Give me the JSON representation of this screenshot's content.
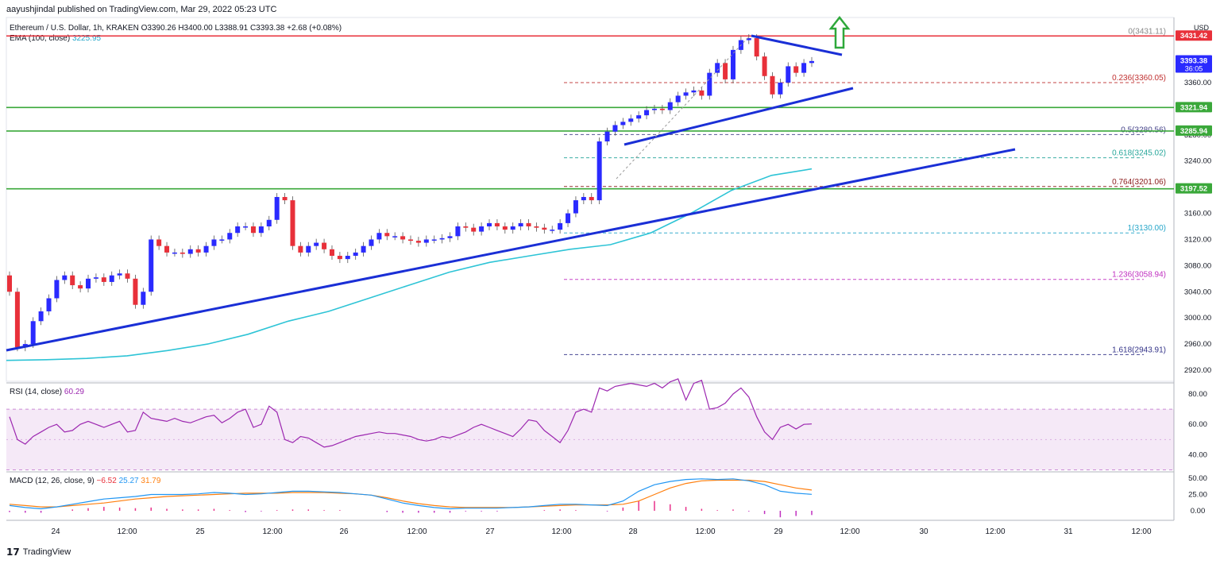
{
  "header": {
    "published": "aayushjindal published on TradingView.com, Mar 29, 2022 05:23 UTC"
  },
  "legend": {
    "symbol": "Ethereum / U.S. Dollar, 1h, KRAKEN",
    "ohlc": "O3390.26  H3400.00  L3388.91  C3393.38  +2.68 (+0.08%)",
    "ema_label": "EMA (100, close)",
    "ema_value": "3225.95"
  },
  "rsi_label": {
    "name": "RSI (14, close)",
    "value": "60.29"
  },
  "macd_label": {
    "name": "MACD (12, 26, close, 9)",
    "v1": "−6.52",
    "v2": "25.27",
    "v3": "31.79"
  },
  "footer": {
    "brand": "TradingView"
  },
  "colors": {
    "up": "#2a2aff",
    "down": "#e8303a",
    "ema": "#2ec4d6",
    "trend": "#1a2fd6",
    "support": "#3aa83a",
    "resistance": "#e8303a",
    "rsi": "#9c27b0",
    "macd": "#2196f3",
    "signal": "#ff7f0e",
    "fib": "#c03030"
  },
  "chart_data": {
    "type": "candlestick",
    "currency": "USD",
    "main_y_ticks": [
      2920,
      2960,
      3000,
      3040,
      3080,
      3120,
      3160,
      3200,
      3240,
      3280,
      3320,
      3360
    ],
    "x_ticks": [
      "24",
      "12:00",
      "25",
      "12:00",
      "26",
      "12:00",
      "27",
      "12:00",
      "28",
      "12:00",
      "29",
      "12:00",
      "30",
      "12:00",
      "31",
      "12:00"
    ],
    "price_labels": [
      {
        "text": "3431.42",
        "value": 3431.42,
        "color": "#e8303a"
      },
      {
        "text": "3393.38",
        "sub": "36:05",
        "value": 3393.38,
        "color": "#2a2aff"
      },
      {
        "text": "3321.94",
        "value": 3321.94,
        "color": "#3aa83a"
      },
      {
        "text": "3285.94",
        "value": 3285.94,
        "color": "#3aa83a"
      },
      {
        "text": "3197.52",
        "value": 3197.52,
        "color": "#3aa83a"
      }
    ],
    "horizontal_lines": [
      {
        "value": 3431.42,
        "color": "#e8303a"
      },
      {
        "value": 3321.94,
        "color": "#3aa83a"
      },
      {
        "value": 3285.94,
        "color": "#3aa83a"
      },
      {
        "value": 3197.52,
        "color": "#3aa83a"
      }
    ],
    "fib_levels": [
      {
        "label": "0(3431.11)",
        "value": 3431.11,
        "color": "#888888",
        "dash": false
      },
      {
        "label": "0.236(3360.05)",
        "value": 3360.05,
        "color": "#c03030",
        "dash": true
      },
      {
        "label": "0.5(3280.56)",
        "value": 3280.56,
        "color": "#444488",
        "dash": true
      },
      {
        "label": "0.618(3245.02)",
        "value": 3245.02,
        "color": "#26a69a",
        "dash": true
      },
      {
        "label": "0.764(3201.06)",
        "value": 3201.06,
        "color": "#8b1a1a",
        "dash": true
      },
      {
        "label": "1(3130.00)",
        "value": 3130.0,
        "color": "#26a6c9",
        "dash": true
      },
      {
        "label": "1.236(3058.94)",
        "value": 3058.94,
        "color": "#c030c0",
        "dash": true
      },
      {
        "label": "1.618(2943.91)",
        "value": 2943.91,
        "color": "#333388",
        "dash": true
      }
    ],
    "candles_close": [
      3040,
      2955,
      2960,
      2995,
      3010,
      3030,
      3058,
      3065,
      3050,
      3045,
      3060,
      3062,
      3055,
      3065,
      3068,
      3060,
      3020,
      3040,
      3120,
      3110,
      3100,
      3100,
      3098,
      3105,
      3100,
      3110,
      3120,
      3120,
      3130,
      3140,
      3140,
      3130,
      3140,
      3150,
      3185,
      3180,
      3110,
      3100,
      3110,
      3115,
      3105,
      3095,
      3090,
      3095,
      3100,
      3110,
      3120,
      3130,
      3125,
      3125,
      3120,
      3118,
      3115,
      3120,
      3120,
      3122,
      3125,
      3140,
      3138,
      3132,
      3140,
      3145,
      3140,
      3135,
      3140,
      3145,
      3140,
      3138,
      3135,
      3135,
      3145,
      3160,
      3180,
      3185,
      3180,
      3270,
      3285,
      3295,
      3300,
      3305,
      3310,
      3318,
      3320,
      3318,
      3330,
      3340,
      3345,
      3348,
      3340,
      3375,
      3390,
      3365,
      3410,
      3425,
      3428,
      3400,
      3370,
      3342,
      3360,
      3385,
      3375,
      3390,
      3393
    ],
    "ema_values": [
      2935,
      2936,
      2938,
      2942,
      2950,
      2960,
      2975,
      2995,
      3010,
      3030,
      3050,
      3070,
      3085,
      3095,
      3105,
      3112,
      3130,
      3160,
      3195,
      3218,
      3228
    ],
    "rsi": {
      "ticks": [
        40,
        60,
        80
      ],
      "bands": [
        70,
        30
      ],
      "values": [
        65,
        50,
        47,
        52,
        55,
        58,
        60,
        55,
        56,
        60,
        62,
        60,
        58,
        60,
        62,
        55,
        56,
        68,
        64,
        63,
        62,
        64,
        62,
        61,
        63,
        65,
        66,
        61,
        64,
        68,
        70,
        58,
        60,
        72,
        68,
        50,
        48,
        52,
        51,
        48,
        45,
        46,
        48,
        50,
        52,
        53,
        54,
        55,
        54,
        54,
        53,
        52,
        50,
        49,
        50,
        52,
        51,
        53,
        55,
        58,
        60,
        58,
        56,
        54,
        52,
        57,
        63,
        62,
        56,
        52,
        48,
        56,
        68,
        70,
        68,
        84,
        82,
        85,
        86,
        87,
        86,
        85,
        87,
        84,
        88,
        90,
        76,
        87,
        89,
        70,
        71,
        74,
        80,
        84,
        78,
        65,
        55,
        50,
        58,
        60,
        57,
        60,
        60.29
      ]
    },
    "macd": {
      "ticks": [
        0,
        25,
        50
      ],
      "macd_values": [
        8,
        5,
        3,
        6,
        10,
        14,
        18,
        20,
        22,
        25,
        25,
        25,
        26,
        28,
        27,
        25,
        26,
        28,
        30,
        30,
        29,
        28,
        26,
        24,
        18,
        12,
        8,
        5,
        3,
        4,
        4,
        4,
        5,
        6,
        8,
        10,
        10,
        9,
        8,
        15,
        30,
        40,
        45,
        48,
        49,
        48,
        49,
        46,
        40,
        30,
        27,
        25.27
      ],
      "signal_values": [
        10,
        8,
        6,
        6,
        8,
        10,
        12,
        15,
        18,
        20,
        22,
        23,
        24,
        25,
        26,
        27,
        27,
        27,
        28,
        28,
        28,
        27,
        26,
        24,
        20,
        15,
        11,
        8,
        6,
        5,
        5,
        5,
        5,
        6,
        7,
        8,
        9,
        9,
        9,
        10,
        15,
        25,
        35,
        42,
        46,
        47,
        47,
        47,
        45,
        40,
        35,
        31.79
      ],
      "histogram_values": [
        -2,
        -3,
        -3,
        0,
        2,
        4,
        6,
        5,
        4,
        5,
        3,
        2,
        2,
        3,
        1,
        -2,
        -1,
        1,
        2,
        2,
        1,
        1,
        0,
        0,
        -2,
        -3,
        -3,
        -3,
        -3,
        -1,
        -1,
        -1,
        0,
        0,
        1,
        2,
        1,
        0,
        -1,
        5,
        15,
        15,
        10,
        6,
        3,
        1,
        2,
        -1,
        -5,
        -10,
        -8,
        -6.52
      ]
    }
  }
}
